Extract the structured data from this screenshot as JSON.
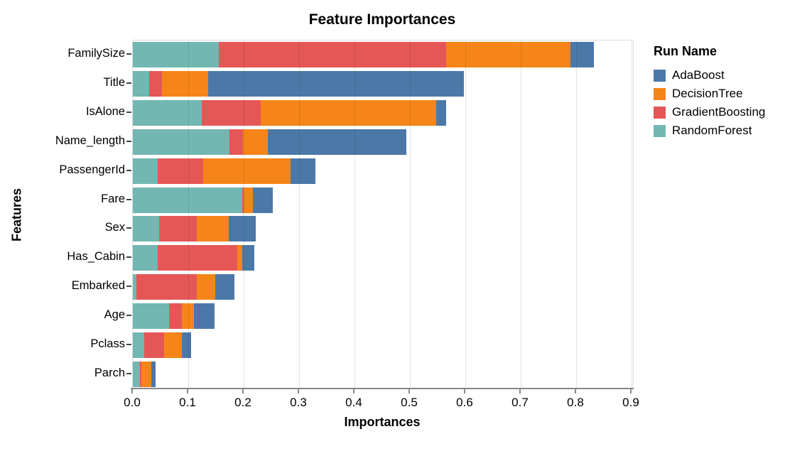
{
  "chart_data": {
    "type": "bar",
    "subtype": "horizontal-stacked",
    "title": "Feature Importances",
    "xlabel": "Importances",
    "ylabel": "Features",
    "legend_title": "Run Name",
    "legend_position": "right",
    "grid": true,
    "categories": [
      "FamilySize",
      "Title",
      "IsAlone",
      "Name_length",
      "PassengerId",
      "Fare",
      "Sex",
      "Has_Cabin",
      "Embarked",
      "Age",
      "Pclass",
      "Parch"
    ],
    "series": [
      {
        "name": "AdaBoost",
        "color": "#4c78a8",
        "values": [
          0.042,
          0.462,
          0.018,
          0.25,
          0.045,
          0.036,
          0.049,
          0.021,
          0.034,
          0.037,
          0.017,
          0.008
        ]
      },
      {
        "name": "DecisionTree",
        "color": "#f58518",
        "values": [
          0.225,
          0.084,
          0.317,
          0.044,
          0.158,
          0.017,
          0.058,
          0.01,
          0.033,
          0.022,
          0.031,
          0.017
        ]
      },
      {
        "name": "GradientBoosting",
        "color": "#e45756",
        "values": [
          0.41,
          0.022,
          0.106,
          0.025,
          0.082,
          0.002,
          0.068,
          0.143,
          0.11,
          0.022,
          0.036,
          0.003
        ]
      },
      {
        "name": "RandomForest",
        "color": "#72b7b2",
        "values": [
          0.155,
          0.03,
          0.125,
          0.174,
          0.045,
          0.198,
          0.047,
          0.045,
          0.006,
          0.066,
          0.021,
          0.013
        ]
      }
    ],
    "stack_order_note": "stacked from baseline in reverse series order: RandomForest, GradientBoosting, DecisionTree, AdaBoost",
    "x_ticks": [
      "0.0",
      "0.1",
      "0.2",
      "0.3",
      "0.4",
      "0.5",
      "0.6",
      "0.7",
      "0.8",
      "0.9"
    ],
    "x_tick_values": [
      0.0,
      0.1,
      0.2,
      0.3,
      0.4,
      0.5,
      0.6,
      0.7,
      0.8,
      0.9
    ],
    "xlim": [
      0,
      0.9026
    ]
  }
}
